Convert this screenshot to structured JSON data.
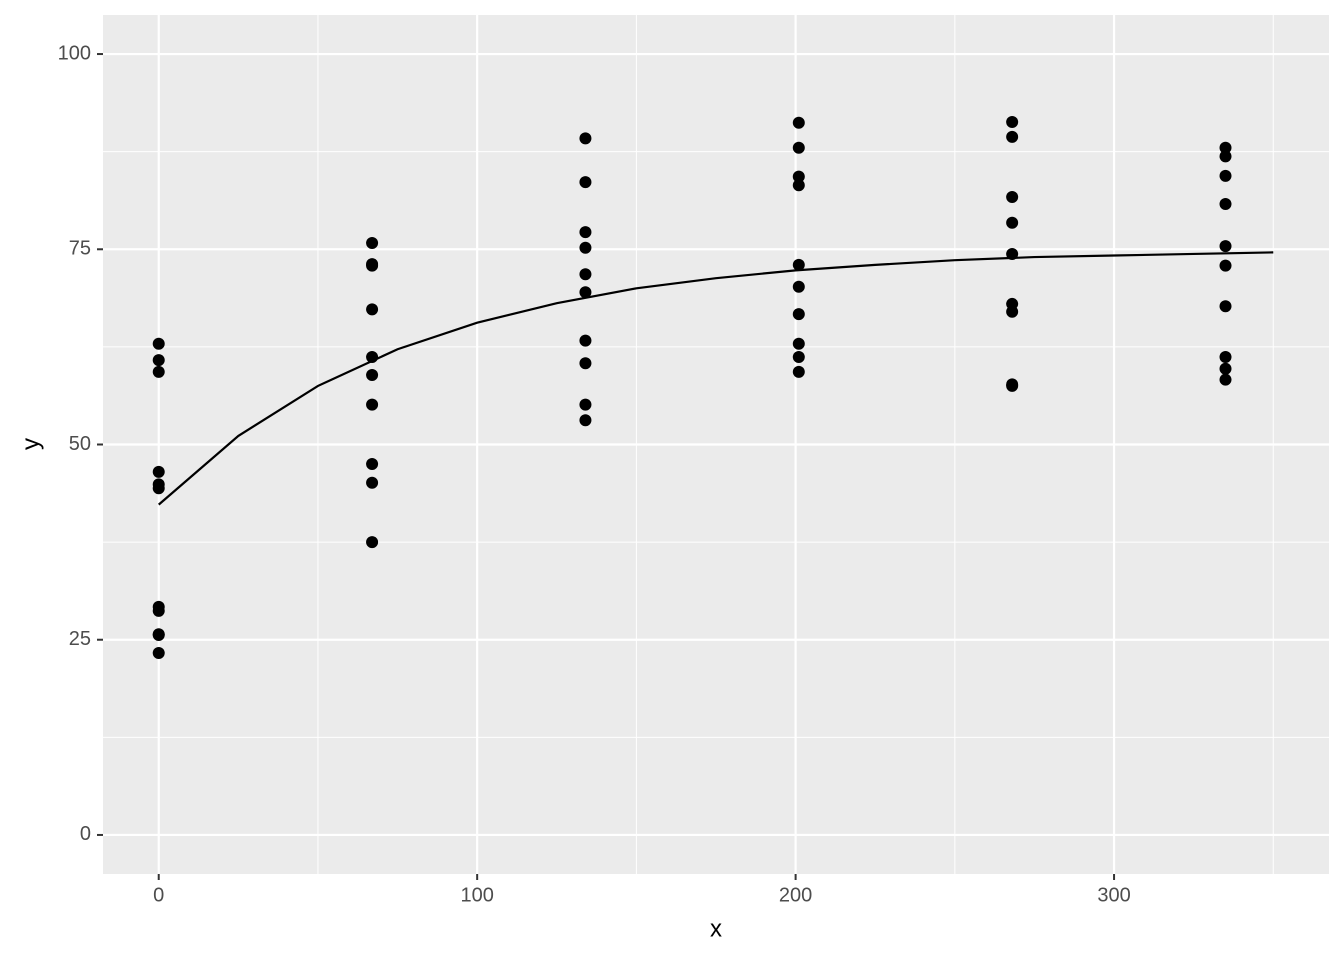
{
  "chart_data": {
    "type": "scatter",
    "x_label": "x",
    "y_label": "y",
    "xlim": [
      -17.5,
      367.5
    ],
    "ylim": [
      -5,
      105
    ],
    "xticks": [
      0,
      100,
      200,
      300
    ],
    "yticks": [
      0,
      25,
      50,
      75,
      100
    ],
    "x_minor_ticks": [
      50,
      150,
      250,
      350
    ],
    "y_minor_ticks": [
      12.5,
      37.5,
      62.5,
      87.5
    ],
    "grid": true,
    "background": "#ebebeb",
    "series": [
      {
        "type": "scatter",
        "color": "#000000",
        "x": [
          0,
          0,
          0,
          0,
          0,
          0,
          0,
          0,
          0,
          0,
          0,
          67,
          67,
          67,
          67,
          67,
          67,
          67,
          67,
          67,
          67,
          134,
          134,
          134,
          134,
          134,
          134,
          134,
          134,
          134,
          134,
          201,
          201,
          201,
          201,
          201,
          201,
          201,
          201,
          201,
          201,
          268,
          268,
          268,
          268,
          268,
          268,
          268,
          268,
          268,
          335,
          335,
          335,
          335,
          335,
          335,
          335,
          335,
          335,
          335
        ],
        "values": [
          62.9,
          60.8,
          59.3,
          46.5,
          44.9,
          44.4,
          29.2,
          28.7,
          25.7,
          25.6,
          23.3,
          75.8,
          73.1,
          72.9,
          67.3,
          61.2,
          58.9,
          55.1,
          47.5,
          45.1,
          37.5,
          89.2,
          83.6,
          77.2,
          75.2,
          71.8,
          69.5,
          63.3,
          60.4,
          55.1,
          53.1,
          91.2,
          88.0,
          84.3,
          83.2,
          73.0,
          70.2,
          66.7,
          62.9,
          61.2,
          59.3,
          91.3,
          89.4,
          81.7,
          78.4,
          74.4,
          68.0,
          67.0,
          57.7,
          57.5,
          88.0,
          86.9,
          84.4,
          80.8,
          75.4,
          72.9,
          67.7,
          61.2,
          59.7,
          58.3
        ]
      },
      {
        "type": "line",
        "color": "#000000",
        "x": [
          0,
          25,
          50,
          75,
          100,
          125,
          150,
          175,
          200,
          225,
          250,
          275,
          300,
          325,
          350
        ],
        "values": [
          42.3,
          51.1,
          57.5,
          62.2,
          65.6,
          68.1,
          70.0,
          71.3,
          72.3,
          73.0,
          73.6,
          74.0,
          74.2,
          74.4,
          74.6
        ]
      }
    ]
  }
}
